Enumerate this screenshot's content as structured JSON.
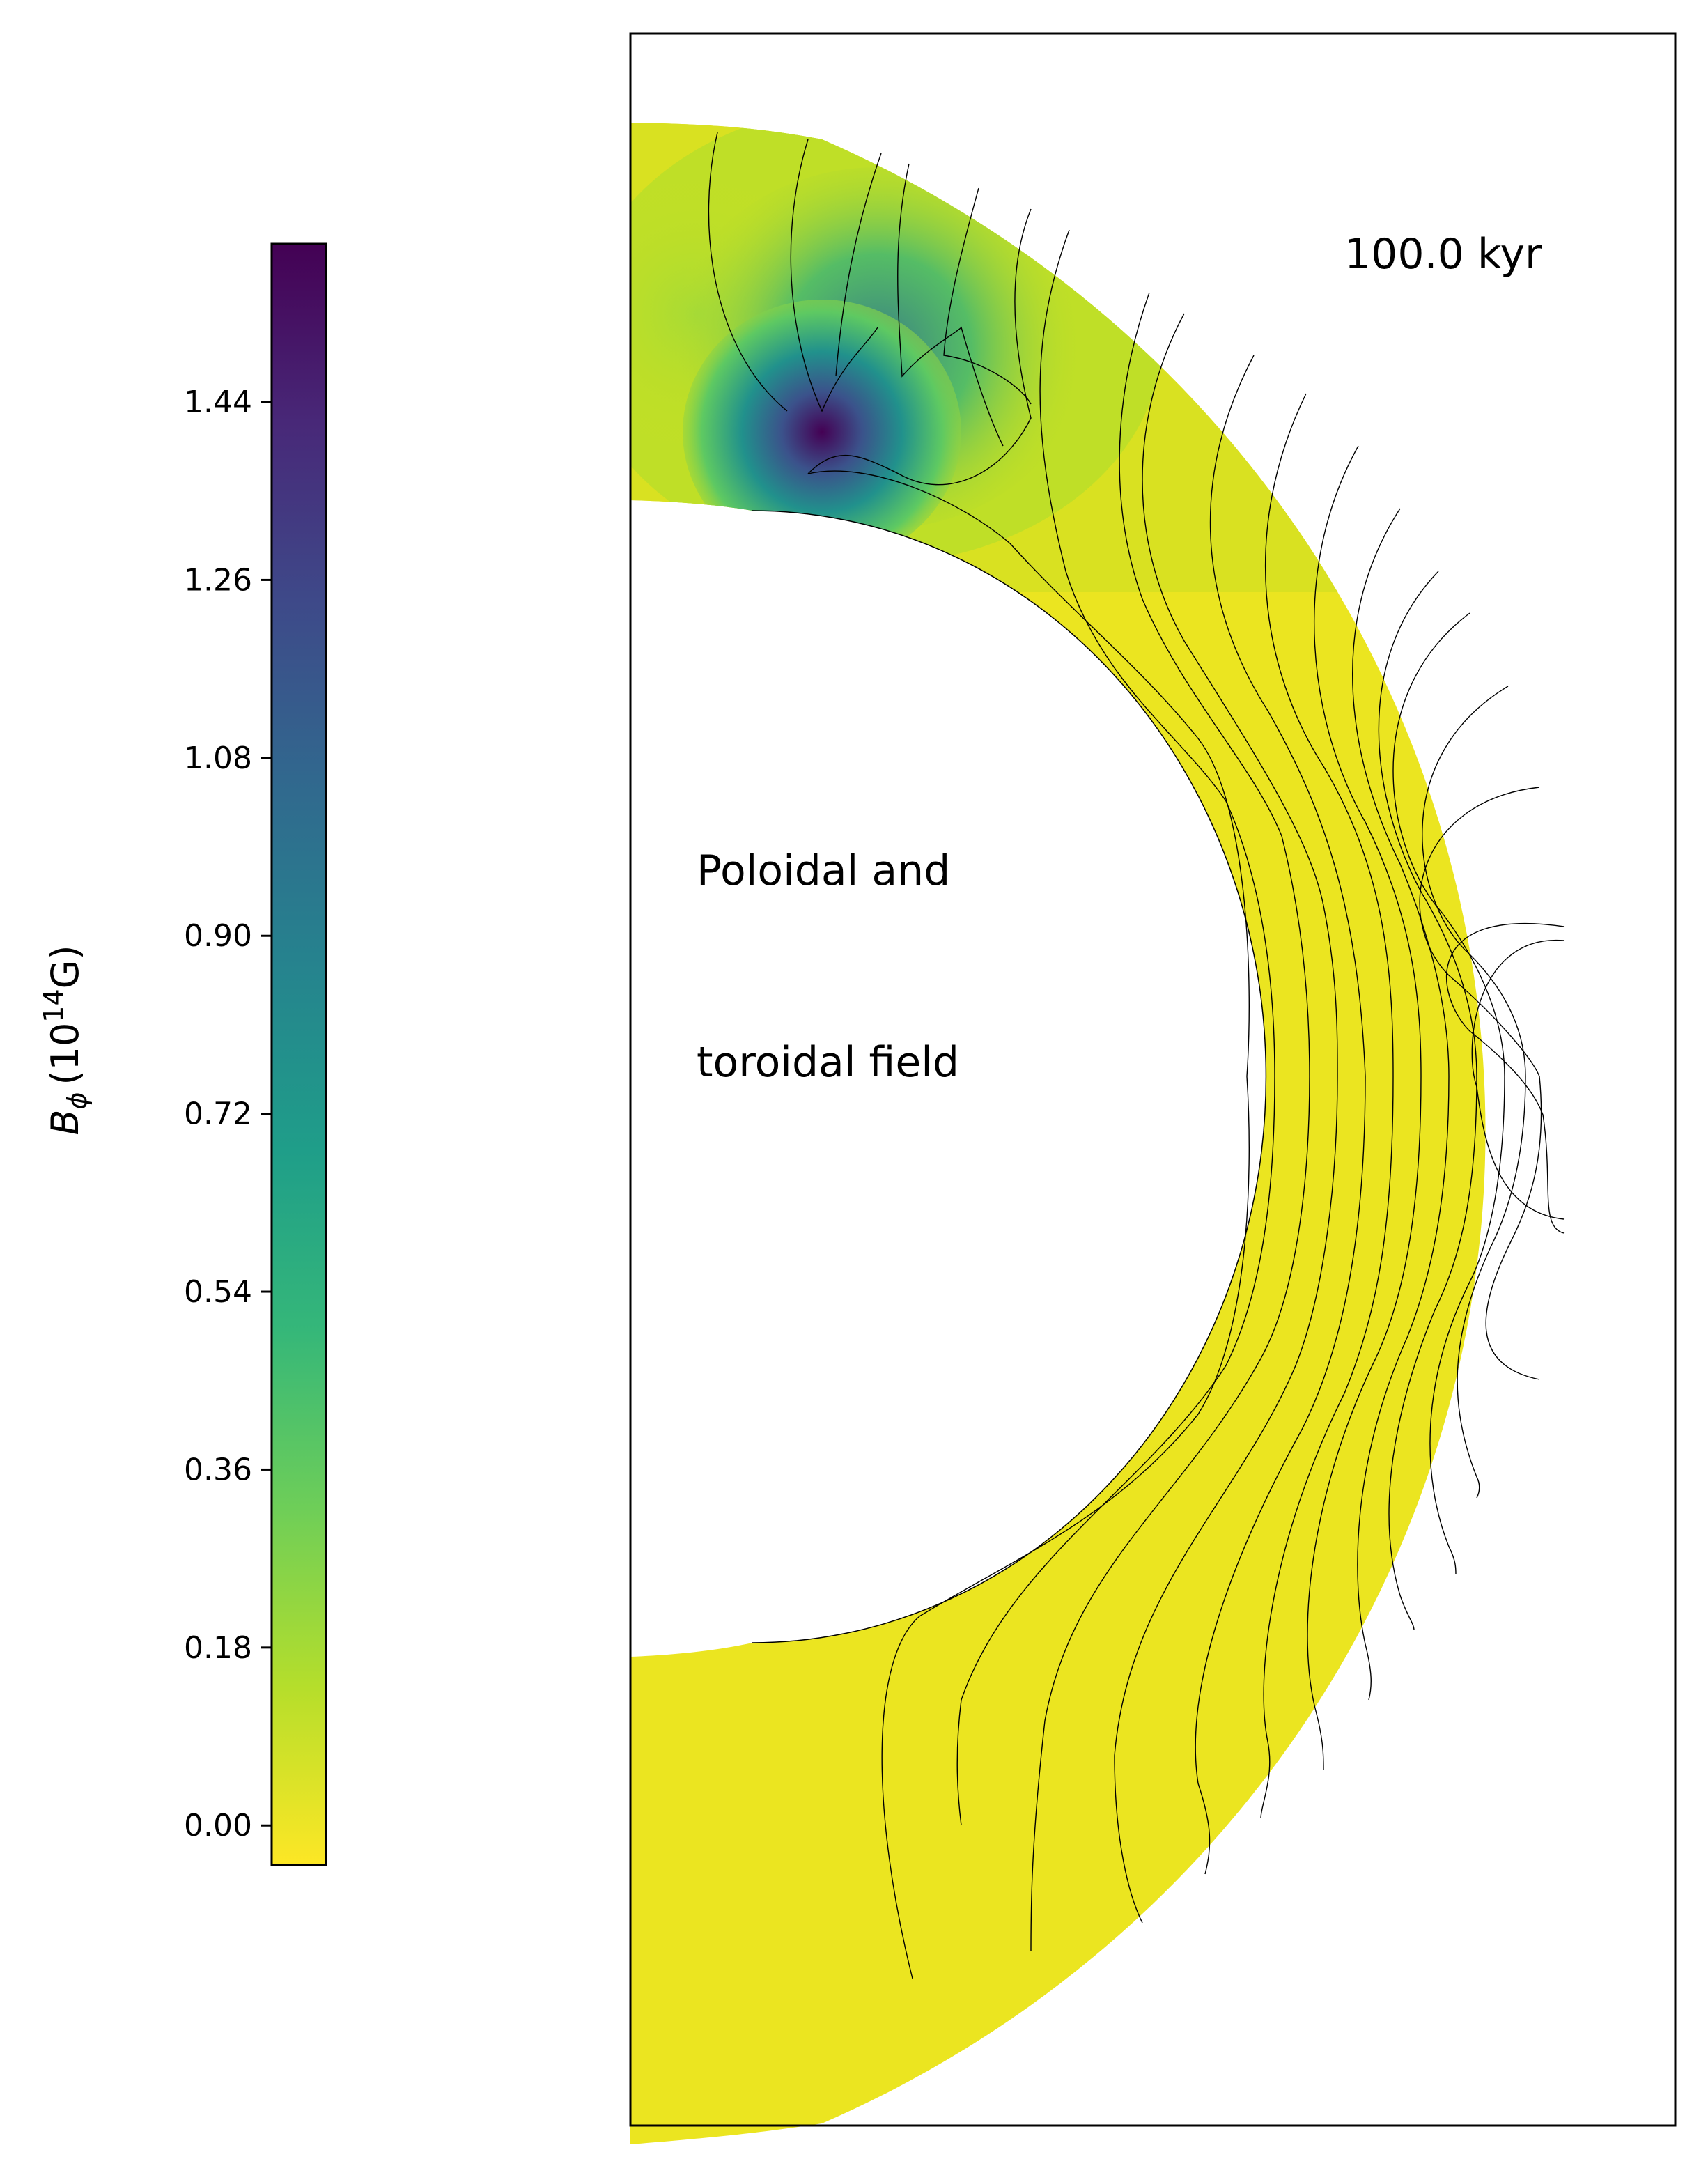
{
  "chart_data": {
    "type": "heatmap",
    "title": "",
    "colorbar": {
      "label": "B_ϕ (10^14 G)",
      "label_parts": {
        "symbol": "B",
        "subscript": "ϕ",
        "unit_open": "(10",
        "exponent": "14",
        "unit_close": "G)"
      },
      "colormap": "viridis_r",
      "ticks": [
        "0.00",
        "0.18",
        "0.36",
        "0.54",
        "0.72",
        "0.90",
        "1.08",
        "1.26",
        "1.44"
      ],
      "tick_values": [
        0.0,
        0.18,
        0.36,
        0.54,
        0.72,
        0.9,
        1.08,
        1.26,
        1.44
      ],
      "range": [
        -0.04,
        1.6
      ],
      "colors": [
        "#fde725",
        "#b5de2b",
        "#6ece58",
        "#35b779",
        "#1f9e89",
        "#26828e",
        "#31688e",
        "#3e4989",
        "#482878",
        "#440154"
      ]
    },
    "annotations": {
      "time": "100.0 kyr",
      "line1": "Poloidal and",
      "line2": "toroidal field"
    },
    "field_map": {
      "geometry": "meridional half-annulus (crust)",
      "inner_radius_fraction": 0.58,
      "max_value_region": "near north pole, inner crust",
      "peak_value": 1.6,
      "field_lines": "black contour lines of poloidal flux"
    }
  }
}
